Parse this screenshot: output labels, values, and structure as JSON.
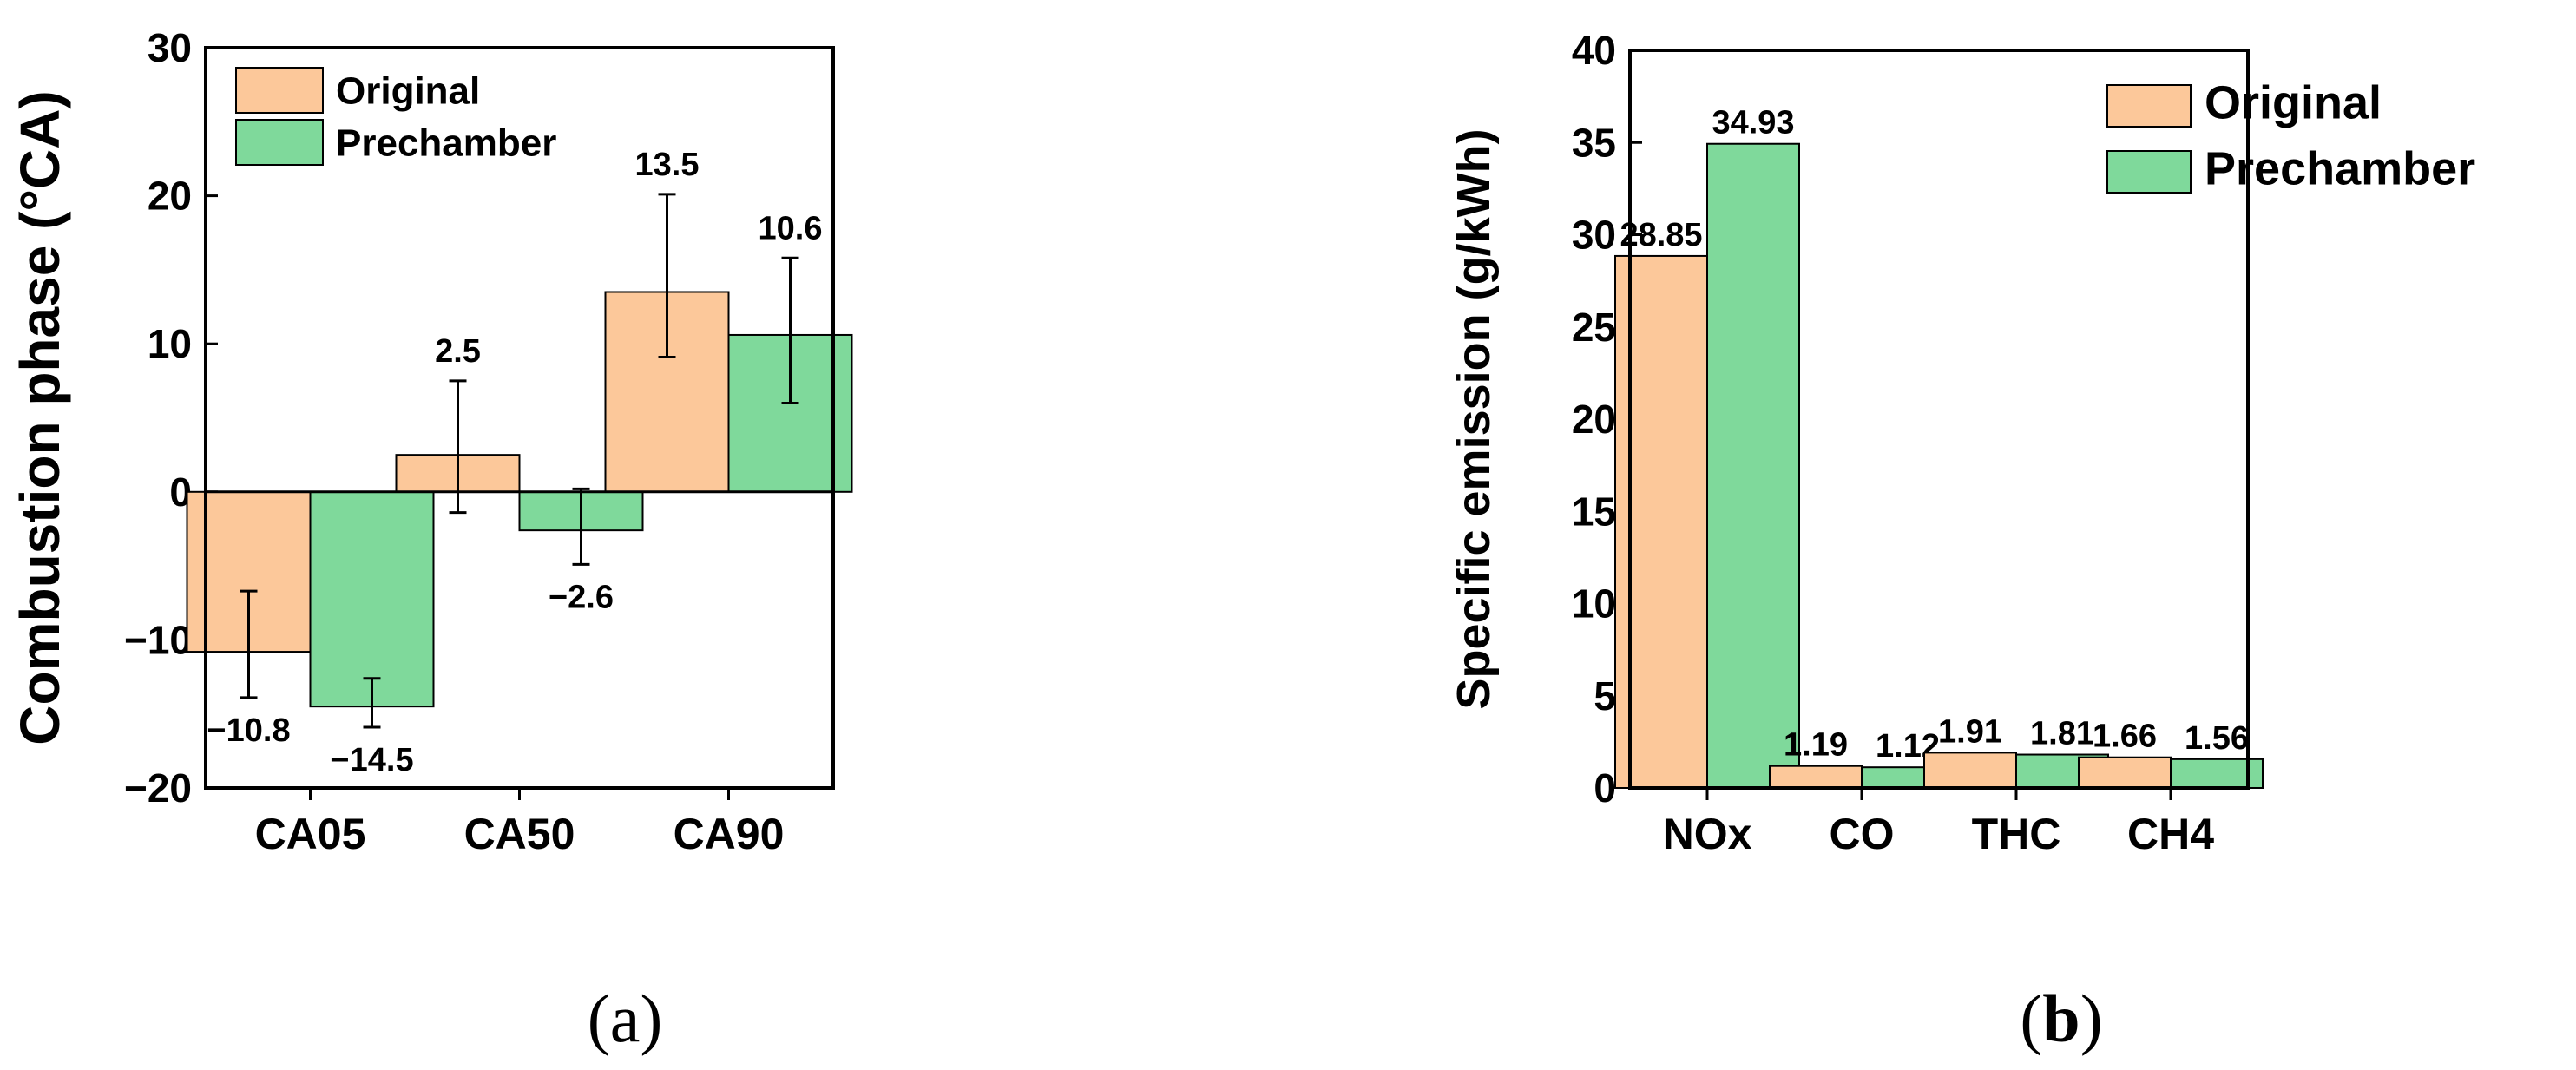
{
  "colors": {
    "original": "#fcc89a",
    "prechamber": "#7fd99b",
    "axis": "#000000"
  },
  "chart_data": [
    {
      "id": "a",
      "type": "bar",
      "sublabel_open": "(",
      "sublabel_letter": "a",
      "sublabel_close": ")",
      "ylabel": "Combustion phase (°CA)",
      "xlabel": "",
      "ylim": [
        -20,
        30
      ],
      "yticks": [
        -20,
        -10,
        0,
        10,
        20,
        30
      ],
      "ytick_labels": [
        "−20",
        "−10",
        "0",
        "10",
        "20",
        "30"
      ],
      "categories": [
        "CA05",
        "CA50",
        "CA90"
      ],
      "legend": [
        "Original",
        "Prechamber"
      ],
      "legend_position": "top-left",
      "series": [
        {
          "name": "Original",
          "values": [
            -10.8,
            2.5,
            13.5
          ],
          "labels": [
            "−10.8",
            "2.5",
            "13.5"
          ],
          "err_low": [
            -13.9,
            -1.4,
            9.1
          ],
          "err_high": [
            -6.7,
            7.5,
            20.1
          ]
        },
        {
          "name": "Prechamber",
          "values": [
            -14.5,
            -2.6,
            10.6
          ],
          "labels": [
            "−14.5",
            "−2.6",
            "10.6"
          ],
          "err_low": [
            -15.9,
            -4.9,
            6.0
          ],
          "err_high": [
            -12.6,
            0.2,
            15.8
          ]
        }
      ]
    },
    {
      "id": "b",
      "type": "bar",
      "sublabel_open": "(",
      "sublabel_letter": "b",
      "sublabel_close": ")",
      "ylabel": "Specific emission (g/kWh)",
      "xlabel": "",
      "ylim": [
        0,
        40
      ],
      "yticks": [
        0,
        5,
        10,
        15,
        20,
        25,
        30,
        35,
        40
      ],
      "ytick_labels": [
        "0",
        "5",
        "10",
        "15",
        "20",
        "25",
        "30",
        "35",
        "40"
      ],
      "categories": [
        "NOx",
        "CO",
        "THC",
        "CH4"
      ],
      "legend": [
        "Original",
        "Prechamber"
      ],
      "legend_position": "top-right",
      "series": [
        {
          "name": "Original",
          "values": [
            28.85,
            1.19,
            1.91,
            1.66
          ],
          "labels": [
            "28.85",
            "1.19",
            "1.91",
            "1.66"
          ]
        },
        {
          "name": "Prechamber",
          "values": [
            34.93,
            1.12,
            1.81,
            1.56
          ],
          "labels": [
            "34.93",
            "1.12",
            "1.81",
            "1.56"
          ]
        }
      ]
    }
  ]
}
